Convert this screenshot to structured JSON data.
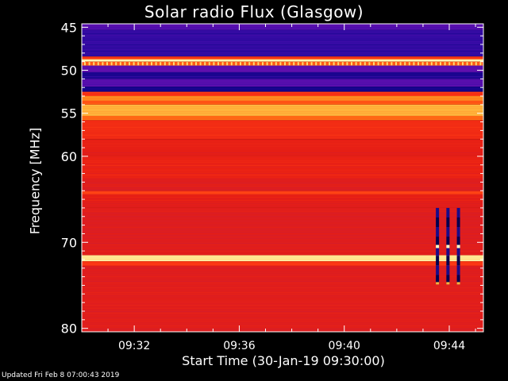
{
  "chart_data": {
    "type": "heatmap",
    "title": "Solar radio Flux (Glasgow)",
    "xlabel": "Start Time (30-Jan-19 09:30:00)",
    "ylabel": "Frequency [MHz]",
    "footer": "Updated Fri Feb  8 07:00:43 2019",
    "x_range_minutes": [
      0,
      15.3
    ],
    "y_range_mhz": [
      44.6,
      80.4
    ],
    "y_ticks": [
      {
        "value": 45,
        "label": "45"
      },
      {
        "value": 50,
        "label": "50"
      },
      {
        "value": 55,
        "label": "55"
      },
      {
        "value": 60,
        "label": "60"
      },
      {
        "value": 70,
        "label": "70"
      },
      {
        "value": 80,
        "label": "80"
      }
    ],
    "x_ticks": [
      {
        "value": 2,
        "label": "09:32"
      },
      {
        "value": 6,
        "label": "09:36"
      },
      {
        "value": 10,
        "label": "09:40"
      },
      {
        "value": 14,
        "label": "09:44"
      }
    ],
    "colormap": [
      "#00007a",
      "#3a0ca8",
      "#6a10b0",
      "#c81e3c",
      "#e61e14",
      "#ff3c14",
      "#ff7814",
      "#ffb43c",
      "#ffdc78",
      "#ffffc8"
    ],
    "bands": [
      {
        "f0": 44.6,
        "f1": 45.3,
        "level": 0.18
      },
      {
        "f0": 45.3,
        "f1": 48.4,
        "level": 0.1
      },
      {
        "f0": 48.4,
        "f1": 48.7,
        "level": 0.55
      },
      {
        "f0": 48.7,
        "f1": 49.0,
        "level": 0.95
      },
      {
        "f0": 49.0,
        "f1": 49.4,
        "level": 0.62
      },
      {
        "f0": 49.4,
        "f1": 50.2,
        "level": 0.2
      },
      {
        "f0": 50.2,
        "f1": 51.0,
        "level": 0.06
      },
      {
        "f0": 51.0,
        "f1": 51.9,
        "level": 0.18
      },
      {
        "f0": 51.9,
        "f1": 52.5,
        "level": 0.05
      },
      {
        "f0": 52.5,
        "f1": 53.0,
        "level": 0.52
      },
      {
        "f0": 53.0,
        "f1": 53.5,
        "level": 0.7
      },
      {
        "f0": 53.5,
        "f1": 54.0,
        "level": 0.6
      },
      {
        "f0": 54.0,
        "f1": 55.3,
        "level": 0.78
      },
      {
        "f0": 55.3,
        "f1": 55.8,
        "level": 0.63
      },
      {
        "f0": 55.8,
        "f1": 58.0,
        "level": 0.5
      },
      {
        "f0": 58.0,
        "f1": 60.0,
        "level": 0.44
      },
      {
        "f0": 60.0,
        "f1": 62.5,
        "level": 0.46
      },
      {
        "f0": 62.5,
        "f1": 64.0,
        "level": 0.42
      },
      {
        "f0": 64.0,
        "f1": 64.4,
        "level": 0.56
      },
      {
        "f0": 64.4,
        "f1": 66.0,
        "level": 0.44
      },
      {
        "f0": 66.0,
        "f1": 71.5,
        "level": 0.42
      },
      {
        "f0": 71.5,
        "f1": 72.2,
        "level": 0.93
      },
      {
        "f0": 72.2,
        "f1": 72.7,
        "level": 0.55
      },
      {
        "f0": 72.7,
        "f1": 80.4,
        "level": 0.42
      }
    ],
    "bursts": [
      {
        "t": 13.55,
        "f0": 66.0,
        "f1": 74.9
      },
      {
        "t": 13.95,
        "f0": 66.0,
        "f1": 74.9
      },
      {
        "t": 14.35,
        "f0": 66.0,
        "f1": 74.9
      }
    ]
  }
}
